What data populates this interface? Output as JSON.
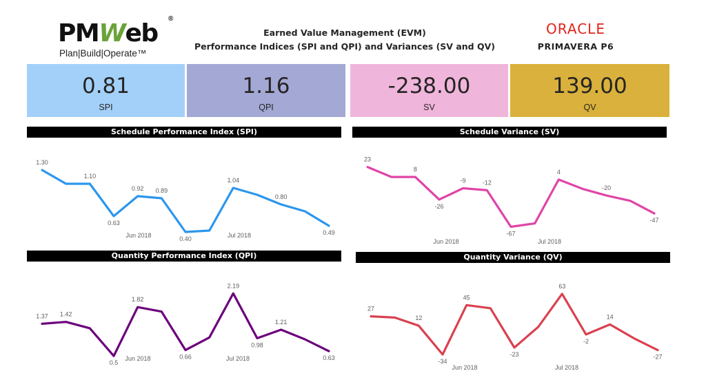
{
  "header": {
    "logo_text_a": "PM",
    "logo_text_w": "W",
    "logo_text_b": "eb",
    "logo_registered": "®",
    "logo_tagline": "Plan|Build|Operate™",
    "title_line1": "Earned Value Management (EVM)",
    "title_line2": "Performance Indices (SPI and QPI) and Variances (SV and QV)",
    "oracle_word": "ORACLE",
    "oracle_sub": "PRIMAVERA P6"
  },
  "kpis": [
    {
      "value": "0.81",
      "label": "SPI",
      "color": "#a3d0f8"
    },
    {
      "value": "1.16",
      "label": "QPI",
      "color": "#a3a8d4"
    },
    {
      "value": "-238.00",
      "label": "SV",
      "color": "#f0b5db"
    },
    {
      "value": "139.00",
      "label": "QV",
      "color": "#d9b13c"
    }
  ],
  "chart_data": [
    {
      "type": "line",
      "title": "Schedule Performance Index (SPI)",
      "color": "#2b96ee",
      "x_tick_labels": [
        "Jun 2018",
        "Jul 2018"
      ],
      "values": [
        1.3,
        1.1,
        1.1,
        0.63,
        0.92,
        0.89,
        0.4,
        0.42,
        1.04,
        0.94,
        0.8,
        0.7,
        0.49
      ],
      "labels": [
        "1.30",
        "",
        "1.10",
        "0.63",
        "0.92",
        "0.89",
        "0.40",
        "",
        "1.04",
        "",
        "0.80",
        "",
        "0.49"
      ],
      "ylim": [
        0.3,
        1.4
      ]
    },
    {
      "type": "line",
      "title": "Schedule Variance (SV)",
      "color": "#e044a7",
      "x_tick_labels": [
        "Jun 2018",
        "Jul 2018"
      ],
      "values": [
        23,
        8,
        8,
        -26,
        -9,
        -12,
        -67,
        -62,
        4,
        -10,
        -20,
        -28,
        -47
      ],
      "labels": [
        "23",
        "",
        "8",
        "-26",
        "-9",
        "-12",
        "-67",
        "",
        "4",
        "",
        "-20",
        "",
        "-47"
      ],
      "ylim": [
        -80,
        35
      ]
    },
    {
      "type": "line",
      "title": "Quantity Performance Index (QPI)",
      "color": "#6b007b",
      "x_tick_labels": [
        "Jun 2018",
        "Jul 2018"
      ],
      "values": [
        1.37,
        1.42,
        1.25,
        0.5,
        1.82,
        1.7,
        0.66,
        1.0,
        2.19,
        0.98,
        1.21,
        0.95,
        0.63
      ],
      "labels": [
        "1.37",
        "1.42",
        "",
        "0.5",
        "1.82",
        "",
        "0.66",
        "",
        "2.19",
        "0.98",
        "1.21",
        "",
        "0.63"
      ],
      "ylim": [
        0.3,
        2.4
      ]
    },
    {
      "type": "line",
      "title": "Quantity Variance (QV)",
      "color": "#d9414f",
      "x_tick_labels": [
        "Jun 2018",
        "Jul 2018"
      ],
      "values": [
        27,
        25,
        12,
        -34,
        45,
        40,
        -23,
        10,
        63,
        -2,
        14,
        -8,
        -27
      ],
      "labels": [
        "27",
        "",
        "12",
        "-34",
        "45",
        "",
        "-23",
        "",
        "63",
        "-2",
        "14",
        "",
        "-27"
      ],
      "ylim": [
        -45,
        75
      ]
    }
  ]
}
